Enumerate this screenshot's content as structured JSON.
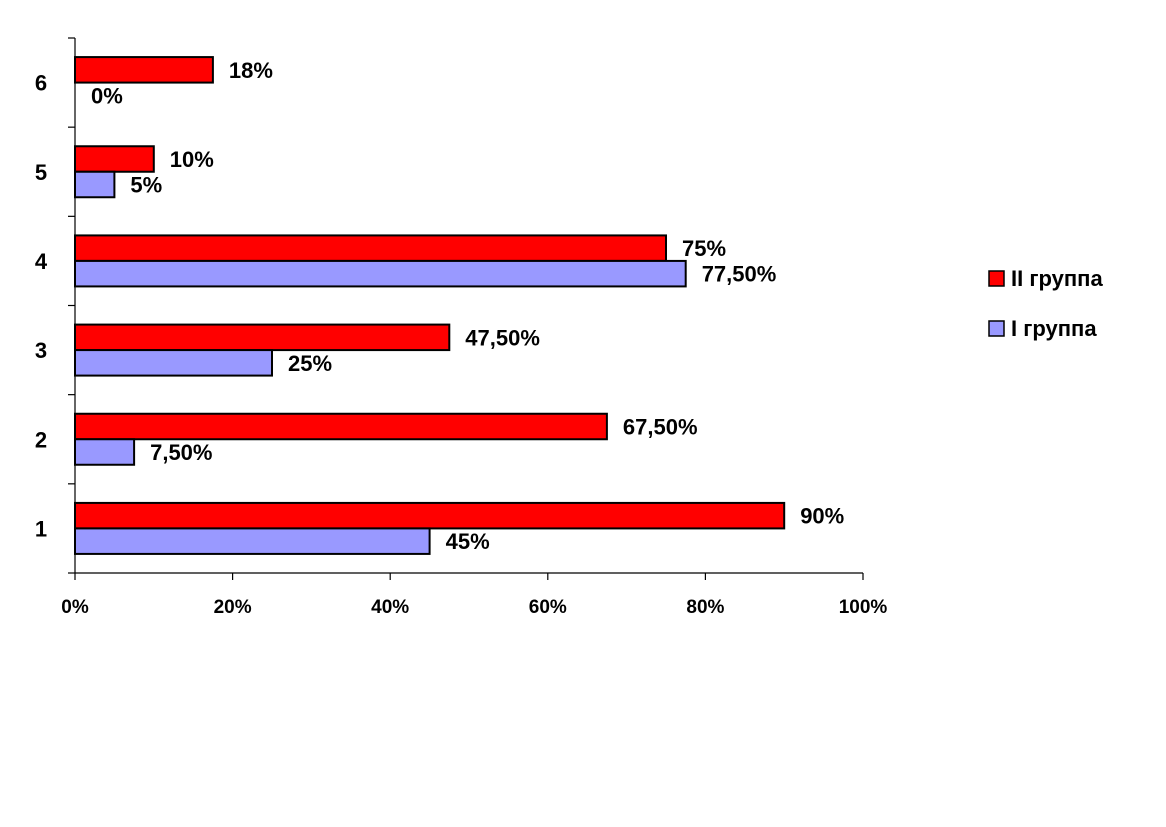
{
  "chart_data": {
    "type": "bar",
    "orientation": "horizontal",
    "categories": [
      "1",
      "2",
      "3",
      "4",
      "5",
      "6"
    ],
    "series": [
      {
        "name": "II группа",
        "color": "#ff0000",
        "values": [
          90,
          67.5,
          47.5,
          75,
          10,
          17.5
        ],
        "labels": [
          "90%",
          "67,50%",
          "47,50%",
          "75%",
          "10%",
          "18%"
        ]
      },
      {
        "name": "I группа",
        "color": "#9999ff",
        "values": [
          45,
          7.5,
          25,
          77.5,
          5,
          0
        ],
        "labels": [
          "45%",
          "7,50%",
          "25%",
          "77,50%",
          "5%",
          "0%"
        ]
      }
    ],
    "xlim": [
      0,
      100
    ],
    "x_ticks": [
      "0%",
      "20%",
      "40%",
      "60%",
      "80%",
      "100%"
    ],
    "grid": false,
    "legend_position": "right"
  }
}
